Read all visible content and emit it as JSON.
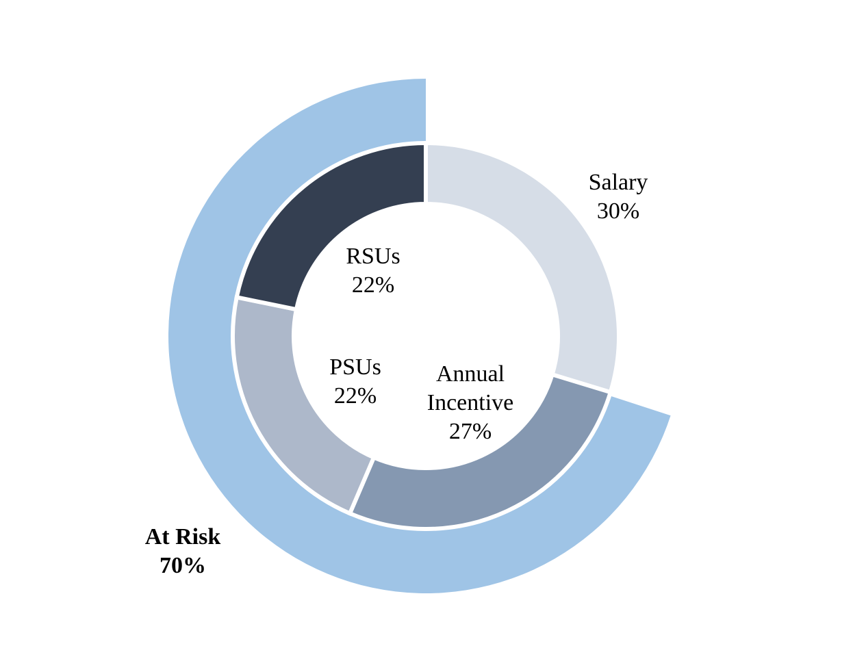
{
  "chart_data": {
    "type": "donut",
    "inner_ring": [
      {
        "name": "Salary",
        "value": 30,
        "color": "#d6dde7"
      },
      {
        "name": "Annual Incentive",
        "value": 27,
        "color": "#8598b1"
      },
      {
        "name": "PSUs",
        "value": 22,
        "color": "#adb8ca"
      },
      {
        "name": "RSUs",
        "value": 22,
        "color": "#343f51"
      }
    ],
    "outer_ring": [
      {
        "name": "At Risk",
        "value": 70,
        "color": "#9fc4e6"
      }
    ],
    "labels": {
      "salary": {
        "name": "Salary",
        "pct": "30%"
      },
      "annual_incentive": {
        "name_line1": "Annual",
        "name_line2": "Incentive",
        "pct": "27%"
      },
      "psus": {
        "name": "PSUs",
        "pct": "22%"
      },
      "rsus": {
        "name": "RSUs",
        "pct": "22%"
      },
      "at_risk": {
        "name": "At Risk",
        "pct": "70%"
      }
    }
  }
}
